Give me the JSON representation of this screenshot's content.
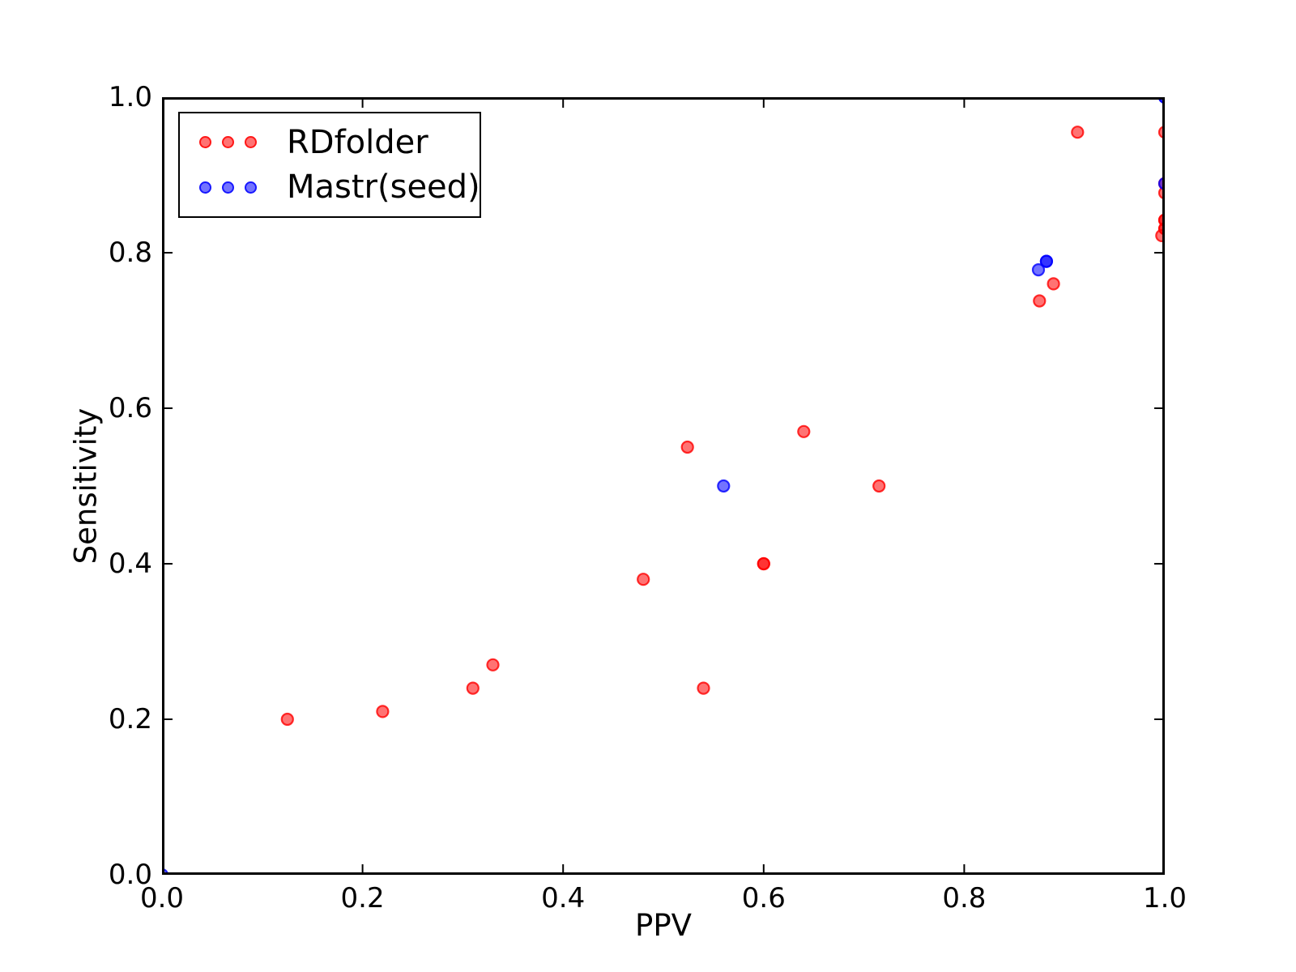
{
  "chart_data": {
    "type": "scatter",
    "title": "",
    "xlabel": "PPV",
    "ylabel": "Sensitivity",
    "xlim": [
      0.0,
      1.0
    ],
    "ylim": [
      0.0,
      1.0
    ],
    "x_ticks": [
      "0.0",
      "0.2",
      "0.4",
      "0.6",
      "0.8",
      "1.0"
    ],
    "y_ticks": [
      "0.0",
      "0.2",
      "0.4",
      "0.6",
      "0.8",
      "1.0"
    ],
    "grid": "off",
    "legend_position": "upper left",
    "legend_markers_per_entry": 3,
    "marker": "circle",
    "marker_alpha": 0.55,
    "series": [
      {
        "name": "RDfolder",
        "color": "#ff0000",
        "points": [
          [
            0.125,
            0.2
          ],
          [
            0.22,
            0.21
          ],
          [
            0.31,
            0.24
          ],
          [
            0.33,
            0.27
          ],
          [
            0.48,
            0.38
          ],
          [
            0.524,
            0.55
          ],
          [
            0.54,
            0.24
          ],
          [
            0.6,
            0.4
          ],
          [
            0.6,
            0.4
          ],
          [
            0.64,
            0.57
          ],
          [
            0.715,
            0.5
          ],
          [
            0.875,
            0.738
          ],
          [
            0.889,
            0.76
          ],
          [
            0.913,
            0.955
          ],
          [
            1.0,
            0.955
          ],
          [
            1.0,
            0.889
          ],
          [
            1.0,
            0.877
          ],
          [
            1.0,
            0.842
          ],
          [
            1.0,
            0.842
          ],
          [
            1.0,
            0.831
          ],
          [
            1.0,
            0.831
          ],
          [
            0.997,
            0.822
          ]
        ]
      },
      {
        "name": "Mastr(seed)",
        "color": "#0000ff",
        "points": [
          [
            0.0,
            0.0
          ],
          [
            0.56,
            0.5
          ],
          [
            0.874,
            0.778
          ],
          [
            0.882,
            0.789
          ],
          [
            0.882,
            0.789
          ],
          [
            1.0,
            0.889
          ],
          [
            1.0,
            1.0
          ],
          [
            1.0,
            1.0
          ]
        ]
      }
    ]
  }
}
